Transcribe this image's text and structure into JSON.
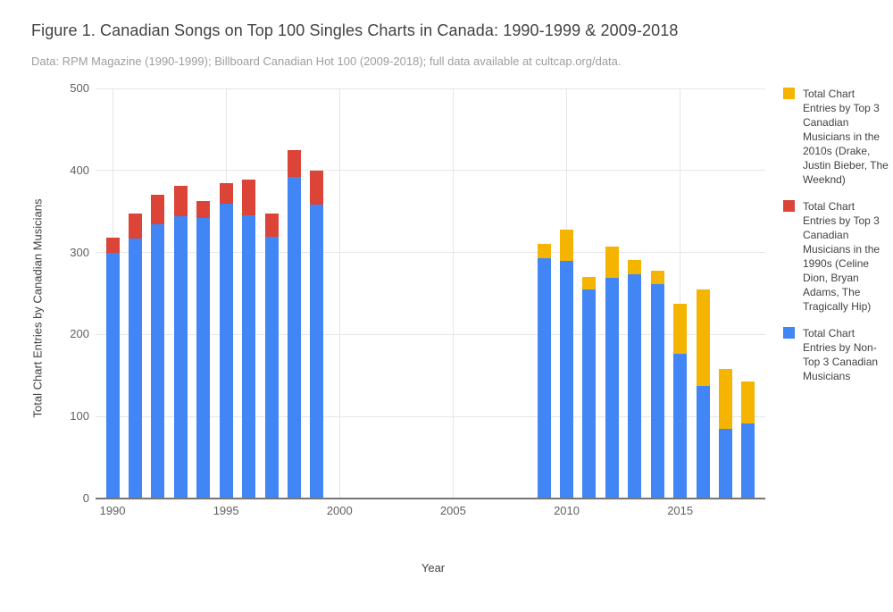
{
  "title": "Figure 1. Canadian Songs on Top 100 Singles Charts in Canada: 1990-1999 & 2009-2018",
  "subtitle": "Data: RPM Magazine (1990-1999); Billboard Canadian Hot 100 (2009-2018); full data available at cultcap.org/data.",
  "colors": {
    "blue": "#4285F4",
    "red": "#DB4437",
    "yellow": "#F4B400",
    "grid": "#E6E6E6",
    "axis_line": "#757575",
    "tick_text": "#616161",
    "title_text": "#424242",
    "subtitle_text": "#9E9E9E"
  },
  "chart_data": {
    "type": "bar",
    "stacked": true,
    "title": "Figure 1. Canadian Songs on Top 100 Singles Charts in Canada: 1990-1999 & 2009-2018",
    "subtitle": "Data: RPM Magazine (1990-1999); Billboard Canadian Hot 100 (2009-2018); full data available at cultcap.org/data.",
    "xlabel": "Year",
    "ylabel": "Total Chart Entries by Canadian Musicians",
    "ylim": [
      0,
      500
    ],
    "yticks": [
      0,
      100,
      200,
      300,
      400,
      500
    ],
    "xticks": [
      1990,
      1995,
      2000,
      2005,
      2010,
      2015
    ],
    "xrange": [
      1989.25,
      2018.75
    ],
    "grid": true,
    "legend_position": "right",
    "categories": [
      1990,
      1991,
      1992,
      1993,
      1994,
      1995,
      1996,
      1997,
      1998,
      1999,
      2009,
      2010,
      2011,
      2012,
      2013,
      2014,
      2015,
      2016,
      2017,
      2018
    ],
    "series": [
      {
        "id": "non_top3",
        "name": "Total Chart Entries by Non-Top 3 Canadian Musicians",
        "color": "#4285F4",
        "values": [
          300,
          317,
          334,
          344,
          342,
          360,
          345,
          319,
          392,
          358,
          293,
          290,
          255,
          269,
          273,
          261,
          176,
          137,
          85,
          91
        ]
      },
      {
        "id": "top3_1990s",
        "name": "Total Chart Entries by Top 3 Canadian Musicians in the 1990s (Celine Dion, Bryan Adams, The Tragically Hip)",
        "color": "#DB4437",
        "values": [
          18,
          30,
          36,
          37,
          21,
          25,
          44,
          29,
          33,
          42,
          0,
          0,
          0,
          0,
          0,
          0,
          0,
          0,
          0,
          0
        ]
      },
      {
        "id": "top3_2010s",
        "name": "Total Chart Entries by Top 3 Canadian Musicians in the 2010s (Drake, Justin Bieber, The Weeknd)",
        "color": "#F4B400",
        "values": [
          0,
          0,
          0,
          0,
          0,
          0,
          0,
          0,
          0,
          0,
          17,
          38,
          15,
          38,
          18,
          17,
          61,
          118,
          73,
          52
        ]
      }
    ],
    "totals": [
      318,
      347,
      370,
      381,
      363,
      385,
      389,
      348,
      425,
      400,
      310,
      328,
      270,
      307,
      291,
      278,
      237,
      255,
      158,
      143
    ],
    "legend_order": [
      "top3_2010s",
      "top3_1990s",
      "non_top3"
    ]
  }
}
